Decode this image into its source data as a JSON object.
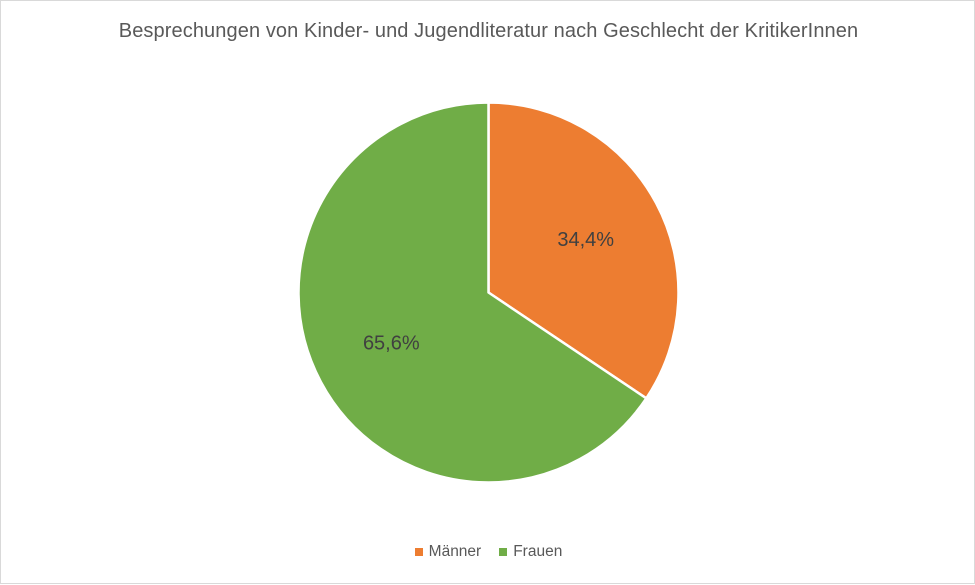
{
  "chart_data": {
    "type": "pie",
    "title": "Besprechungen von Kinder- und Jugendliteratur nach Geschlecht der KritikerInnen",
    "categories": [
      "Männer",
      "Frauen"
    ],
    "values": [
      34.4,
      65.6
    ],
    "data_labels": [
      "34,4%",
      "65,6%"
    ],
    "colors": [
      "#ED7D31",
      "#70AD47"
    ],
    "legend_position": "bottom",
    "start_angle": "12 o'clock",
    "direction": "clockwise"
  }
}
